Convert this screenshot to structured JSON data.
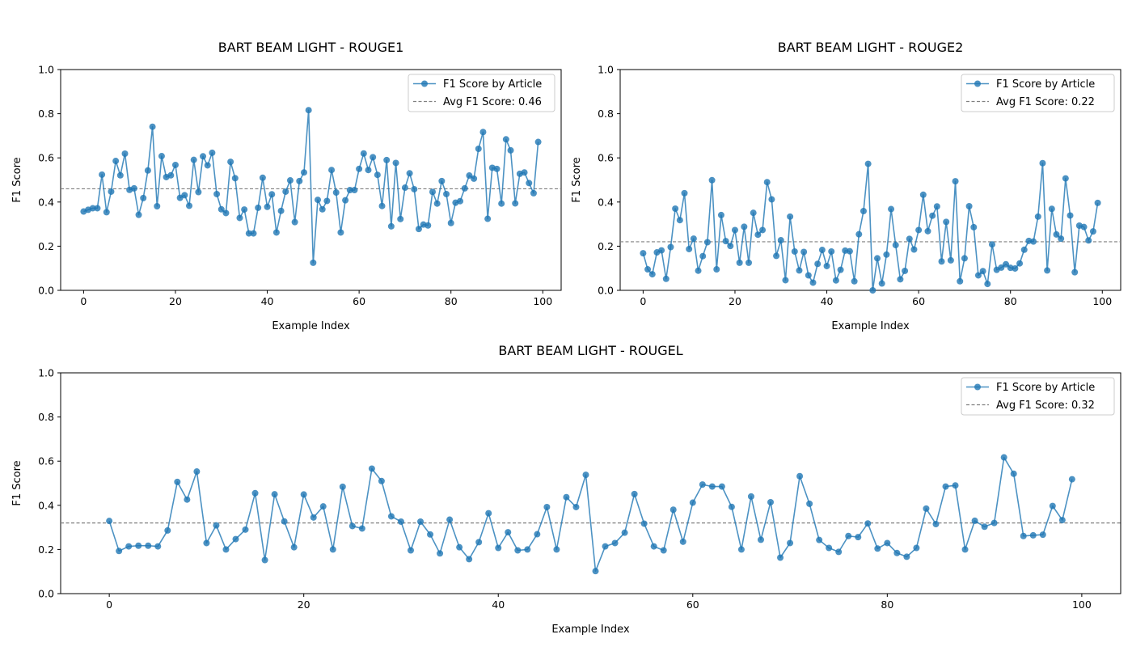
{
  "chart_data": [
    {
      "type": "line",
      "title": "BART BEAM LIGHT - ROUGE1",
      "xlabel": "Example Index",
      "ylabel": "F1 Score",
      "xlim": [
        -5,
        104
      ],
      "ylim": [
        0,
        1
      ],
      "xticks": [
        0,
        20,
        40,
        60,
        80,
        100
      ],
      "yticks": [
        0.0,
        0.2,
        0.4,
        0.6,
        0.8,
        1.0
      ],
      "legend_position": "top-right",
      "grid": false,
      "series": [
        {
          "name": "F1 Score by Article",
          "color": "#1f77b4",
          "values": [
            0.357,
            0.365,
            0.372,
            0.372,
            0.524,
            0.354,
            0.447,
            0.586,
            0.521,
            0.619,
            0.455,
            0.462,
            0.342,
            0.418,
            0.543,
            0.741,
            0.381,
            0.608,
            0.513,
            0.521,
            0.568,
            0.419,
            0.431,
            0.383,
            0.591,
            0.445,
            0.607,
            0.566,
            0.623,
            0.436,
            0.367,
            0.35,
            0.582,
            0.508,
            0.328,
            0.366,
            0.258,
            0.258,
            0.374,
            0.51,
            0.378,
            0.435,
            0.262,
            0.36,
            0.447,
            0.498,
            0.309,
            0.495,
            0.534,
            0.816,
            0.125,
            0.41,
            0.367,
            0.405,
            0.545,
            0.443,
            0.262,
            0.408,
            0.454,
            0.454,
            0.55,
            0.62,
            0.545,
            0.603,
            0.523,
            0.382,
            0.59,
            0.29,
            0.577,
            0.323,
            0.465,
            0.53,
            0.458,
            0.278,
            0.298,
            0.294,
            0.446,
            0.393,
            0.495,
            0.436,
            0.305,
            0.397,
            0.404,
            0.462,
            0.52,
            0.506,
            0.641,
            0.717,
            0.324,
            0.555,
            0.55,
            0.393,
            0.684,
            0.634,
            0.394,
            0.528,
            0.534,
            0.486,
            0.44,
            0.672
          ]
        }
      ],
      "average": {
        "name": "Avg F1 Score: 0.46",
        "value": 0.46,
        "color": "#808080"
      }
    },
    {
      "type": "line",
      "title": "BART BEAM LIGHT - ROUGE2",
      "xlabel": "Example Index",
      "ylabel": "F1 Score",
      "xlim": [
        -5,
        104
      ],
      "ylim": [
        0,
        1
      ],
      "xticks": [
        0,
        20,
        40,
        60,
        80,
        100
      ],
      "yticks": [
        0.0,
        0.2,
        0.4,
        0.6,
        0.8,
        1.0
      ],
      "legend_position": "top-right",
      "grid": false,
      "series": [
        {
          "name": "F1 Score by Article",
          "color": "#1f77b4",
          "values": [
            0.168,
            0.095,
            0.073,
            0.172,
            0.181,
            0.052,
            0.196,
            0.37,
            0.318,
            0.44,
            0.187,
            0.234,
            0.089,
            0.155,
            0.218,
            0.499,
            0.095,
            0.341,
            0.223,
            0.201,
            0.273,
            0.125,
            0.288,
            0.125,
            0.351,
            0.252,
            0.273,
            0.49,
            0.412,
            0.156,
            0.227,
            0.046,
            0.334,
            0.176,
            0.09,
            0.174,
            0.068,
            0.035,
            0.12,
            0.183,
            0.11,
            0.176,
            0.045,
            0.093,
            0.18,
            0.177,
            0.041,
            0.254,
            0.359,
            0.573,
            0.0,
            0.145,
            0.031,
            0.162,
            0.368,
            0.205,
            0.05,
            0.088,
            0.233,
            0.185,
            0.273,
            0.433,
            0.268,
            0.338,
            0.38,
            0.131,
            0.31,
            0.136,
            0.494,
            0.041,
            0.145,
            0.381,
            0.286,
            0.068,
            0.087,
            0.029,
            0.208,
            0.093,
            0.103,
            0.118,
            0.102,
            0.099,
            0.122,
            0.184,
            0.224,
            0.221,
            0.334,
            0.576,
            0.09,
            0.369,
            0.253,
            0.234,
            0.507,
            0.339,
            0.082,
            0.293,
            0.287,
            0.226,
            0.267,
            0.396
          ]
        }
      ],
      "average": {
        "name": "Avg F1 Score: 0.22",
        "value": 0.22,
        "color": "#808080"
      }
    },
    {
      "type": "line",
      "title": "BART BEAM LIGHT - ROUGEL",
      "xlabel": "Example Index",
      "ylabel": "F1 Score",
      "xlim": [
        -5,
        104
      ],
      "ylim": [
        0,
        1
      ],
      "xticks": [
        0,
        20,
        40,
        60,
        80,
        100
      ],
      "yticks": [
        0.0,
        0.2,
        0.4,
        0.6,
        0.8,
        1.0
      ],
      "legend_position": "top-right",
      "grid": false,
      "series": [
        {
          "name": "F1 Score by Article",
          "color": "#1f77b4",
          "values": [
            0.329,
            0.193,
            0.214,
            0.217,
            0.217,
            0.214,
            0.286,
            0.506,
            0.426,
            0.553,
            0.229,
            0.309,
            0.2,
            0.247,
            0.29,
            0.455,
            0.152,
            0.45,
            0.327,
            0.21,
            0.449,
            0.345,
            0.395,
            0.2,
            0.484,
            0.306,
            0.295,
            0.566,
            0.51,
            0.35,
            0.326,
            0.196,
            0.326,
            0.268,
            0.182,
            0.335,
            0.21,
            0.156,
            0.233,
            0.364,
            0.207,
            0.278,
            0.196,
            0.2,
            0.269,
            0.392,
            0.2,
            0.437,
            0.392,
            0.538,
            0.102,
            0.214,
            0.229,
            0.276,
            0.451,
            0.317,
            0.214,
            0.196,
            0.38,
            0.235,
            0.412,
            0.494,
            0.485,
            0.485,
            0.393,
            0.2,
            0.44,
            0.244,
            0.414,
            0.163,
            0.229,
            0.532,
            0.407,
            0.243,
            0.207,
            0.189,
            0.261,
            0.256,
            0.318,
            0.204,
            0.229,
            0.184,
            0.167,
            0.207,
            0.385,
            0.315,
            0.485,
            0.49,
            0.2,
            0.33,
            0.303,
            0.32,
            0.617,
            0.543,
            0.261,
            0.264,
            0.267,
            0.397,
            0.333,
            0.518
          ]
        }
      ],
      "average": {
        "name": "Avg F1 Score: 0.32",
        "value": 0.32,
        "color": "#808080"
      }
    }
  ]
}
